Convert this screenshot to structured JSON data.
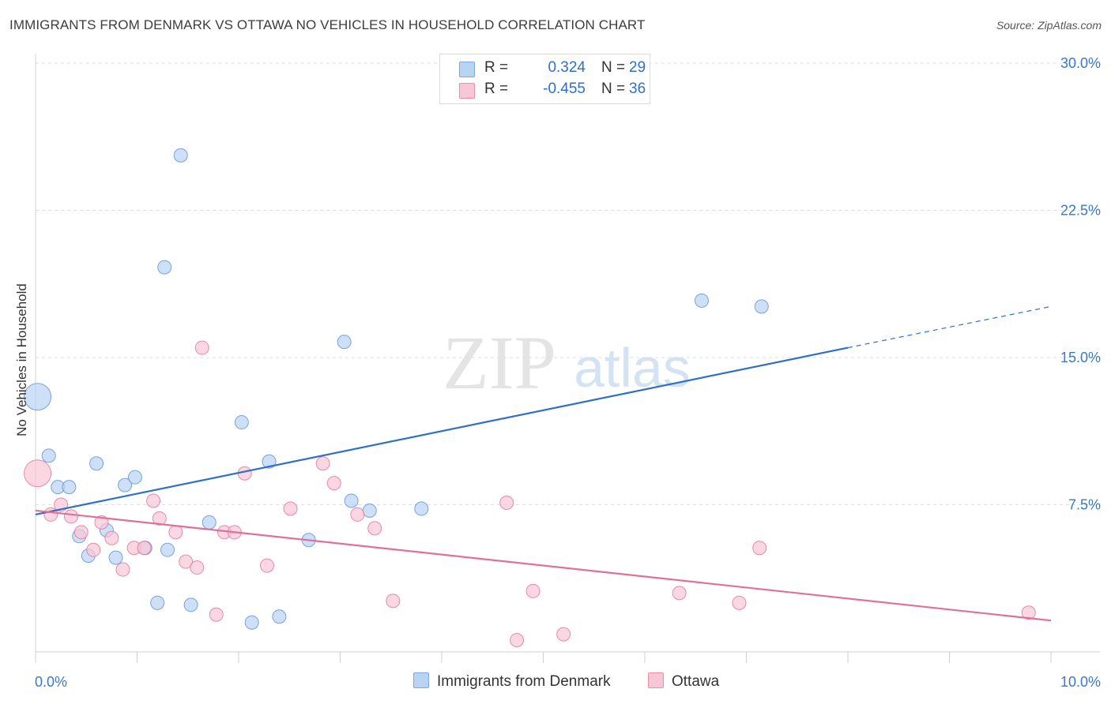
{
  "title": "IMMIGRANTS FROM DENMARK VS OTTAWA NO VEHICLES IN HOUSEHOLD CORRELATION CHART",
  "source": "Source: ZipAtlas.com",
  "watermark": {
    "zip": "ZIP",
    "atlas": "atlas"
  },
  "legend": {
    "rows": [
      {
        "r_label": "R =",
        "r_value": "0.324",
        "n_label": "N =",
        "n_value": "29",
        "color": "#b9d3f3",
        "border": "#7ea7dd"
      },
      {
        "r_label": "R =",
        "r_value": "-0.455",
        "n_label": "N =",
        "n_value": "36",
        "color": "#f9c6d5",
        "border": "#e88fab"
      }
    ]
  },
  "bottom_legend": [
    {
      "label": "Immigrants from Denmark",
      "color": "#b9d3f3",
      "border": "#7ea7dd"
    },
    {
      "label": "Ottawa",
      "color": "#f9c6d5",
      "border": "#e88fab"
    }
  ],
  "chart_data": {
    "type": "scatter",
    "xlabel": "",
    "ylabel": "No Vehicles in Household",
    "xlim": [
      0,
      10
    ],
    "ylim": [
      0,
      30
    ],
    "x_tick_labels": [
      "0.0%",
      "10.0%"
    ],
    "y_ticks": [
      7.5,
      15.0,
      22.5,
      30.0
    ],
    "y_tick_labels": [
      "7.5%",
      "15.0%",
      "22.5%",
      "30.0%"
    ],
    "grid": true,
    "series": [
      {
        "name": "Immigrants from Denmark",
        "color": "#5b8fd6",
        "fill": "#b9d3f3",
        "points": [
          {
            "x": 0.02,
            "y": 13.0,
            "big": true
          },
          {
            "x": 0.13,
            "y": 10.0
          },
          {
            "x": 0.22,
            "y": 8.4
          },
          {
            "x": 0.33,
            "y": 8.4
          },
          {
            "x": 0.43,
            "y": 5.9
          },
          {
            "x": 0.52,
            "y": 4.9
          },
          {
            "x": 0.6,
            "y": 9.6
          },
          {
            "x": 0.7,
            "y": 6.2
          },
          {
            "x": 0.79,
            "y": 4.8
          },
          {
            "x": 0.88,
            "y": 8.5
          },
          {
            "x": 0.98,
            "y": 8.9
          },
          {
            "x": 1.08,
            "y": 5.3
          },
          {
            "x": 1.2,
            "y": 2.5
          },
          {
            "x": 1.3,
            "y": 5.2
          },
          {
            "x": 1.43,
            "y": 25.3
          },
          {
            "x": 1.27,
            "y": 19.6
          },
          {
            "x": 1.53,
            "y": 2.4
          },
          {
            "x": 1.71,
            "y": 6.6
          },
          {
            "x": 2.03,
            "y": 11.7
          },
          {
            "x": 2.13,
            "y": 1.5
          },
          {
            "x": 2.3,
            "y": 9.7
          },
          {
            "x": 2.4,
            "y": 1.8
          },
          {
            "x": 2.69,
            "y": 5.7
          },
          {
            "x": 3.04,
            "y": 15.8
          },
          {
            "x": 3.11,
            "y": 7.7
          },
          {
            "x": 3.29,
            "y": 7.2
          },
          {
            "x": 3.8,
            "y": 7.3
          },
          {
            "x": 6.56,
            "y": 17.9
          },
          {
            "x": 7.15,
            "y": 17.6
          }
        ]
      },
      {
        "name": "Ottawa",
        "color": "#e0709a",
        "fill": "#f9c6d5",
        "points": [
          {
            "x": 0.02,
            "y": 9.1,
            "big": true
          },
          {
            "x": 0.15,
            "y": 7.0
          },
          {
            "x": 0.25,
            "y": 7.5
          },
          {
            "x": 0.35,
            "y": 6.9
          },
          {
            "x": 0.45,
            "y": 6.1
          },
          {
            "x": 0.57,
            "y": 5.2
          },
          {
            "x": 0.65,
            "y": 6.6
          },
          {
            "x": 0.75,
            "y": 5.8
          },
          {
            "x": 0.86,
            "y": 4.2
          },
          {
            "x": 0.97,
            "y": 5.3
          },
          {
            "x": 1.07,
            "y": 5.3
          },
          {
            "x": 1.16,
            "y": 7.7
          },
          {
            "x": 1.22,
            "y": 6.8
          },
          {
            "x": 1.38,
            "y": 6.1
          },
          {
            "x": 1.48,
            "y": 4.6
          },
          {
            "x": 1.59,
            "y": 4.3
          },
          {
            "x": 1.64,
            "y": 15.5
          },
          {
            "x": 1.78,
            "y": 1.9
          },
          {
            "x": 1.86,
            "y": 6.1
          },
          {
            "x": 1.96,
            "y": 6.1
          },
          {
            "x": 2.06,
            "y": 9.1
          },
          {
            "x": 2.28,
            "y": 4.4
          },
          {
            "x": 2.51,
            "y": 7.3
          },
          {
            "x": 2.83,
            "y": 9.6
          },
          {
            "x": 2.94,
            "y": 8.6
          },
          {
            "x": 3.17,
            "y": 7.0
          },
          {
            "x": 3.34,
            "y": 6.3
          },
          {
            "x": 3.52,
            "y": 2.6
          },
          {
            "x": 4.64,
            "y": 7.6
          },
          {
            "x": 4.74,
            "y": 0.6
          },
          {
            "x": 4.9,
            "y": 3.1
          },
          {
            "x": 5.2,
            "y": 0.9
          },
          {
            "x": 6.34,
            "y": 3.0
          },
          {
            "x": 6.93,
            "y": 2.5
          },
          {
            "x": 7.13,
            "y": 5.3
          },
          {
            "x": 9.78,
            "y": 2.0
          }
        ]
      }
    ],
    "trend_lines": [
      {
        "series": "Immigrants from Denmark",
        "color": "#2f6fc6",
        "x0": 0.0,
        "y0": 7.0,
        "x1": 8.0,
        "y1": 15.5,
        "dash_to_x": 10.0,
        "dash_to_y": 17.6
      },
      {
        "series": "Ottawa",
        "color": "#e0709a",
        "x0": 0.0,
        "y0": 7.2,
        "x1": 10.0,
        "y1": 1.6
      }
    ]
  }
}
